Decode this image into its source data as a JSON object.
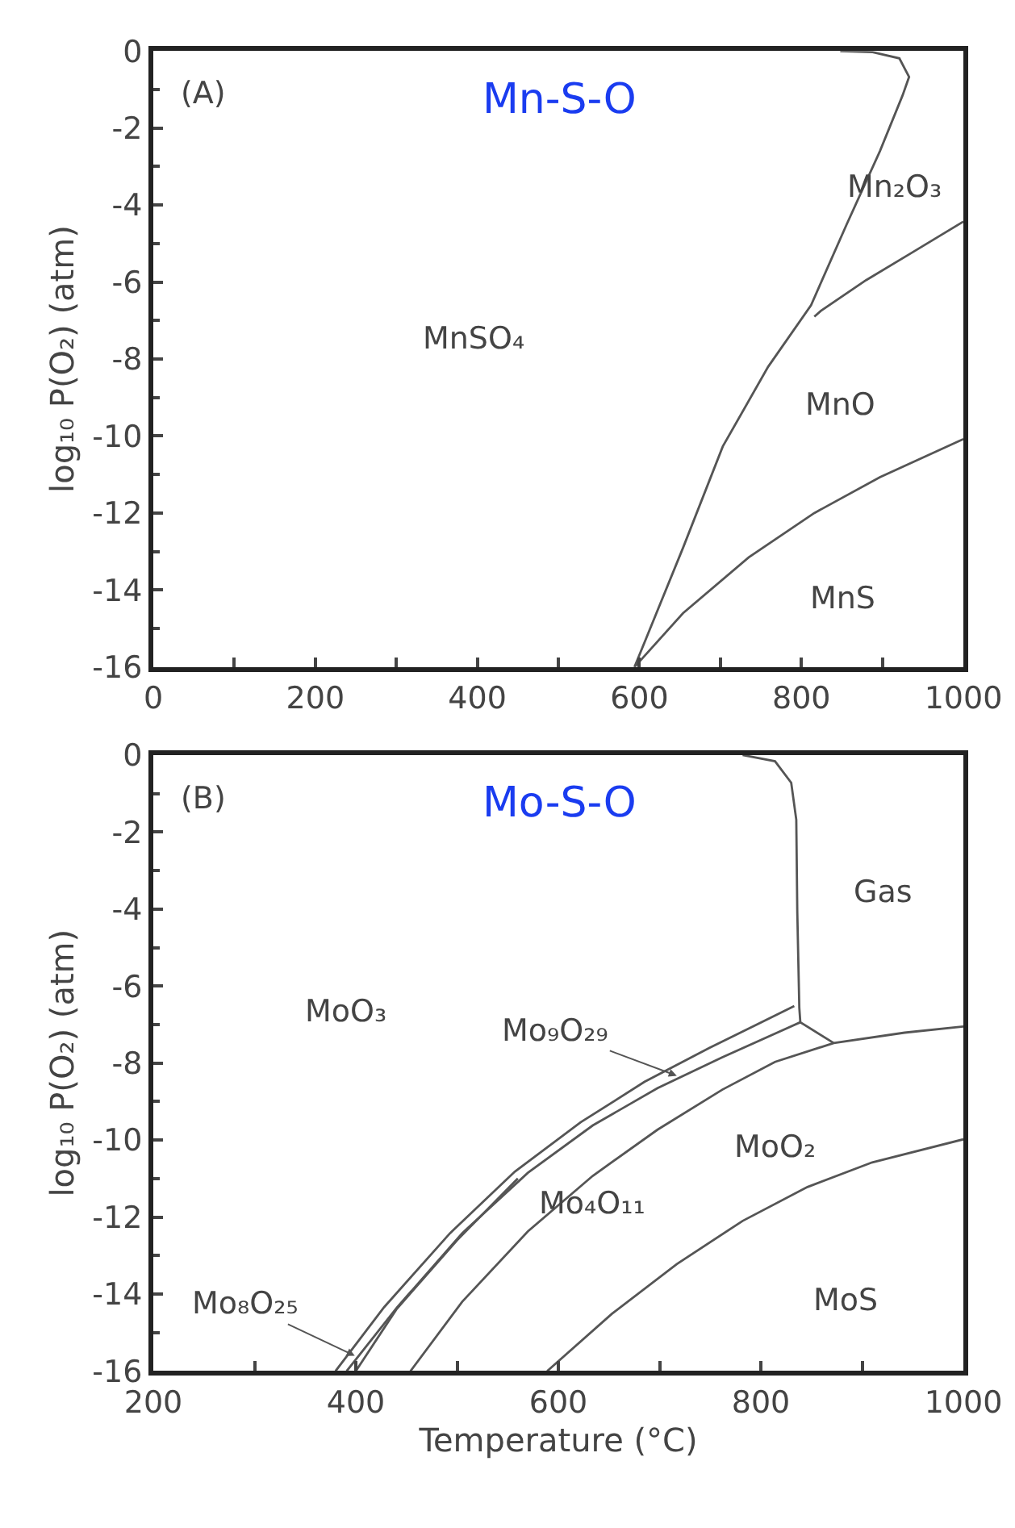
{
  "chart_data": [
    {
      "type": "line",
      "title": "Mn-S-O",
      "ylabel": "log₁₀ P(O₂) (atm)",
      "xlim": [
        0,
        1000
      ],
      "xticks": [
        0,
        {
          "value": 100,
          "label": null
        },
        200,
        {
          "value": 300,
          "label": null
        },
        400,
        {
          "value": 500,
          "label": null
        },
        600,
        {
          "value": 700,
          "label": null
        },
        800,
        {
          "value": 900,
          "label": null
        },
        1000
      ],
      "ylim": [
        -16,
        0
      ],
      "yticks": [
        -16,
        -14,
        -12,
        -10,
        -8,
        -6,
        -4,
        -2,
        0
      ],
      "series": [
        {
          "color": "#555555",
          "x": [
            594,
            654,
            703,
            759,
            812,
            856,
            897,
            925,
            933,
            921,
            888,
            848
          ],
          "values": [
            -16,
            -12.9,
            -10.27,
            -8.2,
            -6.6,
            -4.5,
            -2.6,
            -1.15,
            -0.67,
            -0.19,
            -0.03,
            0
          ]
        },
        {
          "color": "#555555",
          "x": [
            816,
            824,
            880,
            937,
            1000
          ],
          "values": [
            -6.9,
            -6.75,
            -5.95,
            -5.23,
            -4.43
          ]
        },
        {
          "color": "#555555",
          "x": [
            594,
            654,
            735,
            816,
            897,
            1000
          ],
          "values": [
            -16,
            -14.6,
            -13.15,
            -12.0,
            -11.07,
            -10.08
          ]
        }
      ],
      "annotations": [
        "(A)",
        "Mn₂O₃",
        "MnSO₄",
        "MnO",
        "MnS"
      ]
    },
    {
      "type": "line",
      "title": "Mo-S-O",
      "xlabel": "Temperature (°C)",
      "ylabel": "log₁₀ P(O₂) (atm)",
      "xlim": [
        200,
        1000
      ],
      "xticks": [
        200,
        {
          "value": 300,
          "label": null
        },
        400,
        {
          "value": 500,
          "label": null
        },
        600,
        {
          "value": 700,
          "label": null
        },
        800,
        {
          "value": 900,
          "label": null
        },
        1000
      ],
      "ylim": [
        -16,
        0
      ],
      "yticks": [
        -16,
        -14,
        -12,
        -10,
        -8,
        -6,
        -4,
        -2,
        0
      ],
      "series": [
        {
          "color": "#555555",
          "x": [
            782,
            814,
            830,
            835,
            836,
            838,
            839,
            872
          ],
          "values": [
            0,
            -0.16,
            -0.72,
            -1.68,
            -4.09,
            -6.57,
            -6.94,
            -7.48
          ]
        },
        {
          "color": "#555555",
          "x": [
            380,
            428,
            493,
            557,
            622,
            685,
            749,
            833
          ],
          "values": [
            -16,
            -14.34,
            -12.42,
            -10.82,
            -9.54,
            -8.49,
            -7.61,
            -6.52
          ]
        },
        {
          "color": "#555555",
          "x": [
            391,
            441,
            505,
            570,
            634,
            698,
            762,
            839
          ],
          "values": [
            -16,
            -14.34,
            -12.42,
            -10.85,
            -9.62,
            -8.65,
            -7.85,
            -6.94
          ]
        },
        {
          "color": "#555555",
          "x": [
            400,
            440,
            500,
            560
          ],
          "values": [
            -16,
            -14.4,
            -12.6,
            -11.0
          ]
        },
        {
          "color": "#555555",
          "x": [
            454,
            505,
            570,
            634,
            698,
            762,
            814,
            872,
            942,
            1000
          ],
          "values": [
            -16,
            -14.2,
            -12.37,
            -10.93,
            -9.73,
            -8.69,
            -7.97,
            -7.48,
            -7.21,
            -7.05
          ]
        },
        {
          "color": "#555555",
          "x": [
            589,
            653,
            717,
            782,
            846,
            910,
            1000
          ],
          "values": [
            -16,
            -14.51,
            -13.22,
            -12.1,
            -11.22,
            -10.58,
            -9.98
          ]
        }
      ],
      "annotations": [
        "(B)",
        "Gas",
        "MoO₃",
        {
          "text": "Mo₉O₂₉",
          "x": 717,
          "y": -8.33
        },
        "MoO₂",
        "Mo₄O₁₁",
        "MoS",
        {
          "text": "Mo₈O₂₅",
          "x": 399,
          "y": -15.6
        }
      ]
    }
  ]
}
